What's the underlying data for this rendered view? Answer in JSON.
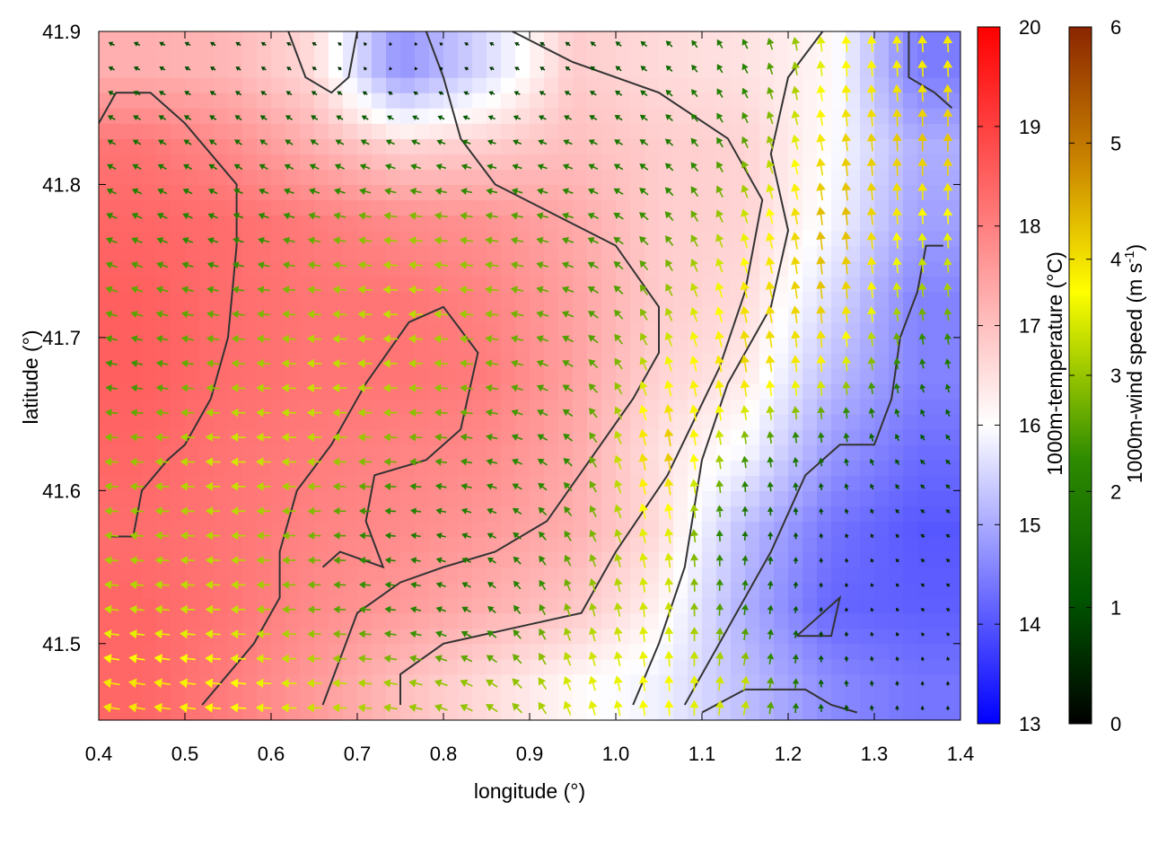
{
  "chart_data": {
    "type": "heatmap",
    "title": "",
    "xlabel": "longitude (°)",
    "ylabel": "latitude (°)",
    "xlim": [
      0.4,
      1.4
    ],
    "ylim": [
      41.45,
      41.9
    ],
    "xticks": [
      0.4,
      0.5,
      0.6,
      0.7,
      0.8,
      0.9,
      1.0,
      1.1,
      1.2,
      1.3,
      1.4
    ],
    "xtick_labels": [
      "0.4",
      "0.5",
      "0.6",
      "0.7",
      "0.8",
      "0.9",
      "1.0",
      "1.1",
      "1.2",
      "1.3",
      "1.4"
    ],
    "yticks": [
      41.5,
      41.6,
      41.7,
      41.8,
      41.9
    ],
    "ytick_labels": [
      "41.5",
      "41.6",
      "41.7",
      "41.8",
      "41.9"
    ],
    "grid": false,
    "temperature_colorbar": {
      "label": "1000m-temperature (°C)",
      "range": [
        13,
        20
      ],
      "ticks": [
        13,
        14,
        15,
        16,
        17,
        18,
        19,
        20
      ],
      "tick_labels": [
        "13",
        "14",
        "15",
        "16",
        "17",
        "18",
        "19",
        "20"
      ],
      "colors": [
        "#0000ff",
        "#ffffff",
        "#ff0000"
      ]
    },
    "windspeed_colorbar": {
      "label_main": "1000m-wind speed (m s",
      "label_sup": "-1",
      "label_close": ")",
      "range": [
        0,
        6
      ],
      "ticks": [
        0,
        1,
        2,
        3,
        4,
        5,
        6
      ],
      "tick_labels": [
        "0",
        "1",
        "2",
        "3",
        "4",
        "5",
        "6"
      ],
      "colors": [
        "#000000",
        "#005500",
        "#2e8b00",
        "#ffff00",
        "#cc8800",
        "#8b2500"
      ]
    },
    "temperature_field": {
      "x": [
        0.45,
        0.55,
        0.65,
        0.75,
        0.85,
        0.95,
        1.05,
        1.15,
        1.25,
        1.35
      ],
      "y": [
        41.475,
        41.525,
        41.575,
        41.625,
        41.675,
        41.725,
        41.775,
        41.825,
        41.875
      ],
      "values": [
        [
          18.6,
          18.3,
          17.9,
          17.4,
          17.0,
          16.6,
          16.3,
          15.6,
          14.9,
          14.6
        ],
        [
          18.6,
          18.4,
          18.1,
          17.9,
          17.6,
          17.3,
          16.7,
          15.4,
          14.4,
          14.3
        ],
        [
          18.5,
          18.4,
          18.2,
          18.1,
          17.9,
          17.6,
          17.0,
          15.6,
          14.6,
          14.2
        ],
        [
          18.6,
          18.4,
          18.3,
          18.2,
          18.1,
          17.7,
          16.9,
          16.4,
          15.1,
          14.5
        ],
        [
          18.7,
          18.5,
          18.4,
          18.4,
          18.3,
          17.8,
          17.1,
          16.8,
          15.6,
          14.8
        ],
        [
          18.7,
          18.5,
          18.4,
          18.4,
          18.2,
          17.8,
          17.2,
          17.0,
          16.0,
          14.8
        ],
        [
          18.6,
          18.5,
          18.3,
          18.1,
          18.0,
          17.7,
          17.2,
          17.1,
          16.4,
          15.2
        ],
        [
          18.4,
          18.1,
          17.6,
          17.1,
          17.2,
          17.4,
          17.2,
          17.1,
          16.5,
          15.4
        ],
        [
          17.6,
          17.5,
          17.0,
          15.0,
          16.0,
          17.2,
          17.0,
          16.9,
          16.6,
          14.7
        ]
      ]
    },
    "wind_field": {
      "x": [
        0.45,
        0.55,
        0.65,
        0.75,
        0.85,
        0.95,
        1.05,
        1.15,
        1.25,
        1.35
      ],
      "y": [
        41.475,
        41.525,
        41.575,
        41.625,
        41.675,
        41.725,
        41.775,
        41.825,
        41.875
      ],
      "u": [
        [
          -3.8,
          -3.6,
          -3.3,
          -3.0,
          -2.6,
          -1.2,
          -0.3,
          0.6,
          -0.2,
          0.0
        ],
        [
          -3.2,
          -3.3,
          -2.8,
          -2.2,
          -1.6,
          -0.9,
          -0.3,
          0.3,
          0.1,
          -0.4
        ],
        [
          -3.0,
          -3.2,
          -2.8,
          -2.0,
          -1.8,
          -1.4,
          -0.7,
          0.1,
          -0.2,
          -0.5
        ],
        [
          -3.0,
          -3.4,
          -3.2,
          -2.8,
          -2.4,
          -1.8,
          -0.6,
          -0.4,
          -0.2,
          -0.8
        ],
        [
          -2.4,
          -3.0,
          -3.3,
          -3.2,
          -2.8,
          -2.2,
          -1.0,
          -0.6,
          -0.2,
          -0.4
        ],
        [
          -2.6,
          -2.6,
          -3.0,
          -3.3,
          -3.0,
          -2.4,
          -1.4,
          -0.8,
          -0.4,
          -0.3
        ],
        [
          -2.2,
          -2.0,
          -2.6,
          -3.0,
          -2.8,
          -2.4,
          -1.8,
          -1.0,
          -0.5,
          -0.2
        ],
        [
          -1.6,
          -1.4,
          -1.6,
          -1.8,
          -1.6,
          -1.8,
          -1.6,
          -1.2,
          -0.6,
          0.0
        ],
        [
          -1.0,
          -0.8,
          -0.6,
          0.0,
          -0.6,
          -0.8,
          -1.2,
          -1.0,
          -0.3,
          -0.2
        ]
      ],
      "v": [
        [
          0.6,
          0.3,
          0.0,
          0.5,
          1.5,
          3.2,
          3.6,
          3.2,
          1.2,
          0.5
        ],
        [
          0.3,
          0.0,
          0.0,
          0.3,
          1.2,
          2.8,
          3.4,
          2.2,
          0.4,
          0.3
        ],
        [
          0.2,
          0.0,
          0.0,
          0.2,
          0.8,
          2.2,
          3.6,
          1.8,
          0.6,
          0.4
        ],
        [
          0.1,
          0.1,
          0.0,
          0.1,
          0.5,
          1.6,
          4.4,
          2.6,
          1.6,
          0.8
        ],
        [
          0.4,
          0.2,
          0.1,
          0.0,
          0.4,
          1.4,
          3.4,
          4.0,
          3.6,
          1.8
        ],
        [
          0.8,
          0.4,
          0.2,
          0.1,
          0.3,
          1.0,
          2.6,
          3.8,
          4.2,
          3.0
        ],
        [
          1.0,
          0.8,
          0.6,
          0.3,
          0.4,
          0.8,
          1.8,
          3.2,
          4.4,
          3.6
        ],
        [
          0.9,
          1.0,
          1.0,
          0.8,
          0.6,
          0.8,
          1.2,
          2.4,
          4.0,
          4.2
        ],
        [
          0.5,
          0.5,
          0.4,
          0.2,
          0.3,
          0.6,
          1.0,
          2.0,
          3.6,
          3.8
        ]
      ]
    },
    "contours": [
      [
        [
          0.52,
          41.46
        ],
        [
          0.58,
          41.5
        ],
        [
          0.61,
          41.53
        ],
        [
          0.61,
          41.56
        ],
        [
          0.63,
          41.6
        ],
        [
          0.67,
          41.63
        ],
        [
          0.71,
          41.67
        ],
        [
          0.76,
          41.71
        ],
        [
          0.8,
          41.72
        ],
        [
          0.84,
          41.69
        ],
        [
          0.82,
          41.64
        ],
        [
          0.78,
          41.62
        ],
        [
          0.72,
          41.61
        ],
        [
          0.71,
          41.58
        ],
        [
          0.73,
          41.55
        ],
        [
          0.68,
          41.56
        ],
        [
          0.66,
          41.55
        ]
      ],
      [
        [
          0.66,
          41.46
        ],
        [
          0.7,
          41.52
        ],
        [
          0.75,
          41.54
        ],
        [
          0.8,
          41.55
        ],
        [
          0.86,
          41.56
        ],
        [
          0.92,
          41.58
        ],
        [
          0.97,
          41.62
        ],
        [
          1.02,
          41.66
        ],
        [
          1.05,
          41.69
        ],
        [
          1.05,
          41.72
        ],
        [
          1.0,
          41.76
        ],
        [
          0.93,
          41.78
        ],
        [
          0.86,
          41.8
        ],
        [
          0.82,
          41.83
        ],
        [
          0.8,
          41.87
        ],
        [
          0.78,
          41.9
        ]
      ],
      [
        [
          0.75,
          41.46
        ],
        [
          0.75,
          41.48
        ],
        [
          0.8,
          41.5
        ],
        [
          0.88,
          41.51
        ],
        [
          0.96,
          41.52
        ],
        [
          1.0,
          41.56
        ],
        [
          1.06,
          41.61
        ],
        [
          1.12,
          41.68
        ],
        [
          1.15,
          41.73
        ],
        [
          1.17,
          41.79
        ],
        [
          1.13,
          41.83
        ],
        [
          1.05,
          41.86
        ],
        [
          0.95,
          41.88
        ],
        [
          0.88,
          41.9
        ]
      ],
      [
        [
          0.41,
          41.57
        ],
        [
          0.44,
          41.57
        ],
        [
          0.45,
          41.6
        ],
        [
          0.48,
          41.62
        ],
        [
          0.5,
          41.63
        ],
        [
          0.53,
          41.66
        ],
        [
          0.55,
          41.7
        ],
        [
          0.56,
          41.76
        ],
        [
          0.56,
          41.8
        ],
        [
          0.5,
          41.84
        ],
        [
          0.46,
          41.86
        ],
        [
          0.42,
          41.86
        ],
        [
          0.4,
          41.84
        ]
      ],
      [
        [
          1.02,
          41.46
        ],
        [
          1.05,
          41.5
        ],
        [
          1.08,
          41.55
        ],
        [
          1.1,
          41.62
        ],
        [
          1.13,
          41.67
        ],
        [
          1.18,
          41.72
        ],
        [
          1.2,
          41.77
        ],
        [
          1.18,
          41.82
        ],
        [
          1.2,
          41.87
        ],
        [
          1.24,
          41.9
        ]
      ],
      [
        [
          1.08,
          41.46
        ],
        [
          1.14,
          41.52
        ],
        [
          1.18,
          41.56
        ],
        [
          1.22,
          41.61
        ],
        [
          1.26,
          41.63
        ],
        [
          1.3,
          41.63
        ],
        [
          1.32,
          41.66
        ],
        [
          1.33,
          41.7
        ],
        [
          1.35,
          41.73
        ],
        [
          1.36,
          41.76
        ],
        [
          1.38,
          41.76
        ]
      ],
      [
        [
          1.1,
          41.455
        ],
        [
          1.15,
          41.47
        ],
        [
          1.22,
          41.47
        ],
        [
          1.25,
          41.46
        ],
        [
          1.28,
          41.455
        ]
      ],
      [
        [
          1.21,
          41.505
        ],
        [
          1.25,
          41.505
        ],
        [
          1.26,
          41.53
        ],
        [
          1.24,
          41.52
        ],
        [
          1.21,
          41.505
        ]
      ],
      [
        [
          0.62,
          41.9
        ],
        [
          0.64,
          41.87
        ],
        [
          0.67,
          41.86
        ],
        [
          0.69,
          41.87
        ],
        [
          0.7,
          41.9
        ]
      ],
      [
        [
          1.34,
          41.9
        ],
        [
          1.34,
          41.87
        ],
        [
          1.37,
          41.86
        ],
        [
          1.39,
          41.85
        ]
      ]
    ]
  }
}
